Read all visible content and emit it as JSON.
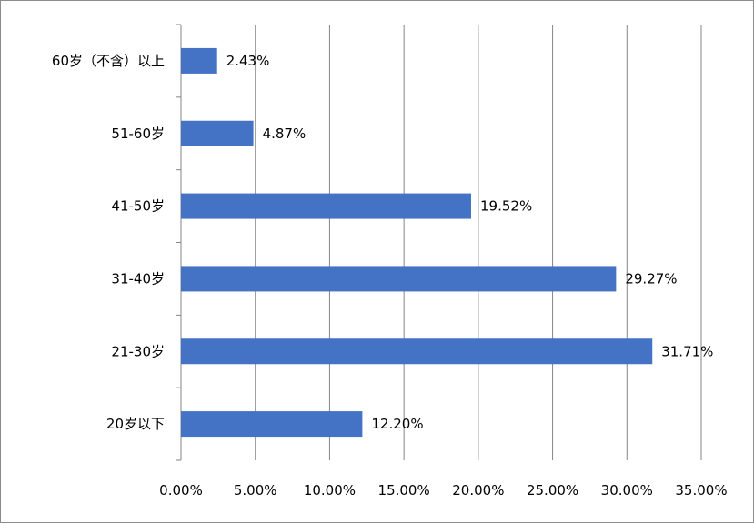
{
  "chart_data": {
    "type": "bar",
    "orientation": "horizontal",
    "categories": [
      "20岁以下",
      "21-30岁",
      "31-40岁",
      "41-50岁",
      "51-60岁",
      "60岁（不含）以上"
    ],
    "values": [
      12.2,
      31.71,
      29.27,
      19.52,
      4.87,
      2.43
    ],
    "data_labels": [
      "12.20%",
      "31.71%",
      "29.27%",
      "19.52%",
      "4.87%",
      "2.43%"
    ],
    "x_ticks": [
      "0.00%",
      "5.00%",
      "10.00%",
      "15.00%",
      "20.00%",
      "25.00%",
      "30.00%",
      "35.00%"
    ],
    "xlim": [
      0,
      35
    ],
    "grid": "vertical",
    "legend": "none",
    "title": "",
    "xlabel": "",
    "ylabel": "",
    "colors": {
      "bar": "#4472C4",
      "grid": "#868686",
      "frame": "#8c8c8c"
    }
  }
}
